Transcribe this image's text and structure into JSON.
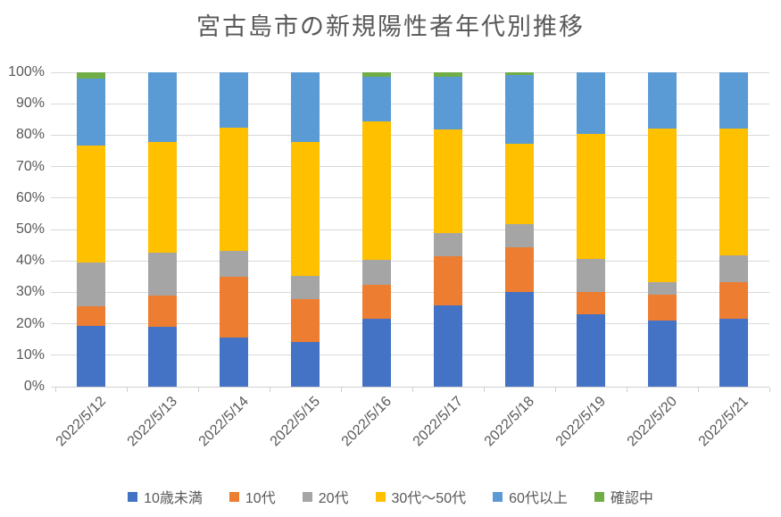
{
  "chart_data": {
    "type": "bar",
    "subtype": "stacked-100",
    "title": "宮古島市の新規陽性者年代別推移",
    "xlabel": "",
    "ylabel": "",
    "ylim": [
      0,
      100
    ],
    "grid": true,
    "legend_position": "bottom",
    "y_ticks": [
      "0%",
      "10%",
      "20%",
      "30%",
      "40%",
      "50%",
      "60%",
      "70%",
      "80%",
      "90%",
      "100%"
    ],
    "categories": [
      "2022/5/12",
      "2022/5/13",
      "2022/5/14",
      "2022/5/15",
      "2022/5/16",
      "2022/5/17",
      "2022/5/18",
      "2022/5/19",
      "2022/5/20",
      "2022/5/21"
    ],
    "series": [
      {
        "name": "10歳未満",
        "color": "#4472C4",
        "values": [
          19.2,
          19.0,
          15.7,
          14.1,
          21.7,
          25.9,
          30.0,
          23.1,
          20.9,
          21.7
        ]
      },
      {
        "name": "10代",
        "color": "#ED7D31",
        "values": [
          6.4,
          10.0,
          19.3,
          13.8,
          10.7,
          15.7,
          14.4,
          7.1,
          8.4,
          11.4
        ]
      },
      {
        "name": "20代",
        "color": "#A5A5A5",
        "values": [
          13.8,
          13.6,
          8.1,
          7.4,
          7.8,
          7.3,
          7.3,
          10.4,
          4.0,
          8.7
        ]
      },
      {
        "name": "30代〜50代",
        "color": "#FFC000",
        "values": [
          37.2,
          35.3,
          39.4,
          42.4,
          44.3,
          33.0,
          25.6,
          39.7,
          48.9,
          40.2
        ]
      },
      {
        "name": "60代以上",
        "color": "#5B9BD5",
        "values": [
          21.3,
          22.1,
          17.5,
          22.3,
          14.1,
          16.6,
          21.8,
          19.7,
          17.8,
          18.0
        ]
      },
      {
        "name": "確認中",
        "color": "#70AD47",
        "values": [
          2.1,
          0,
          0,
          0,
          1.4,
          1.5,
          0.9,
          0,
          0,
          0
        ]
      }
    ]
  }
}
